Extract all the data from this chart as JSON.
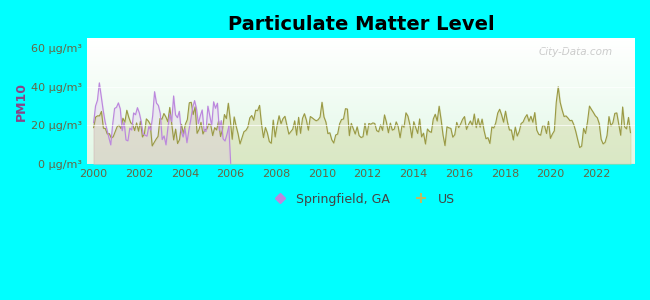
{
  "title": "Particulate Matter Level",
  "ylabel": "PM10",
  "background_outer": "#00FFFF",
  "ylim": [
    0,
    65
  ],
  "yticks": [
    0,
    20,
    40,
    60
  ],
  "ytick_labels": [
    "0 μg/m³",
    "20 μg/m³",
    "40 μg/m³",
    "60 μg/m³"
  ],
  "xlim_start": 1999.7,
  "xlim_end": 2023.7,
  "xticks": [
    2000,
    2002,
    2004,
    2006,
    2008,
    2010,
    2012,
    2014,
    2016,
    2018,
    2020,
    2022
  ],
  "springfield_color": "#bb88dd",
  "us_color": "#999944",
  "watermark": "City-Data.com",
  "legend_springfield": "Springfield, GA",
  "legend_us": "US",
  "ylabel_color": "#884488",
  "tick_color": "#666644",
  "title_fontsize": 14,
  "ylabel_fontsize": 9,
  "tick_fontsize": 8
}
